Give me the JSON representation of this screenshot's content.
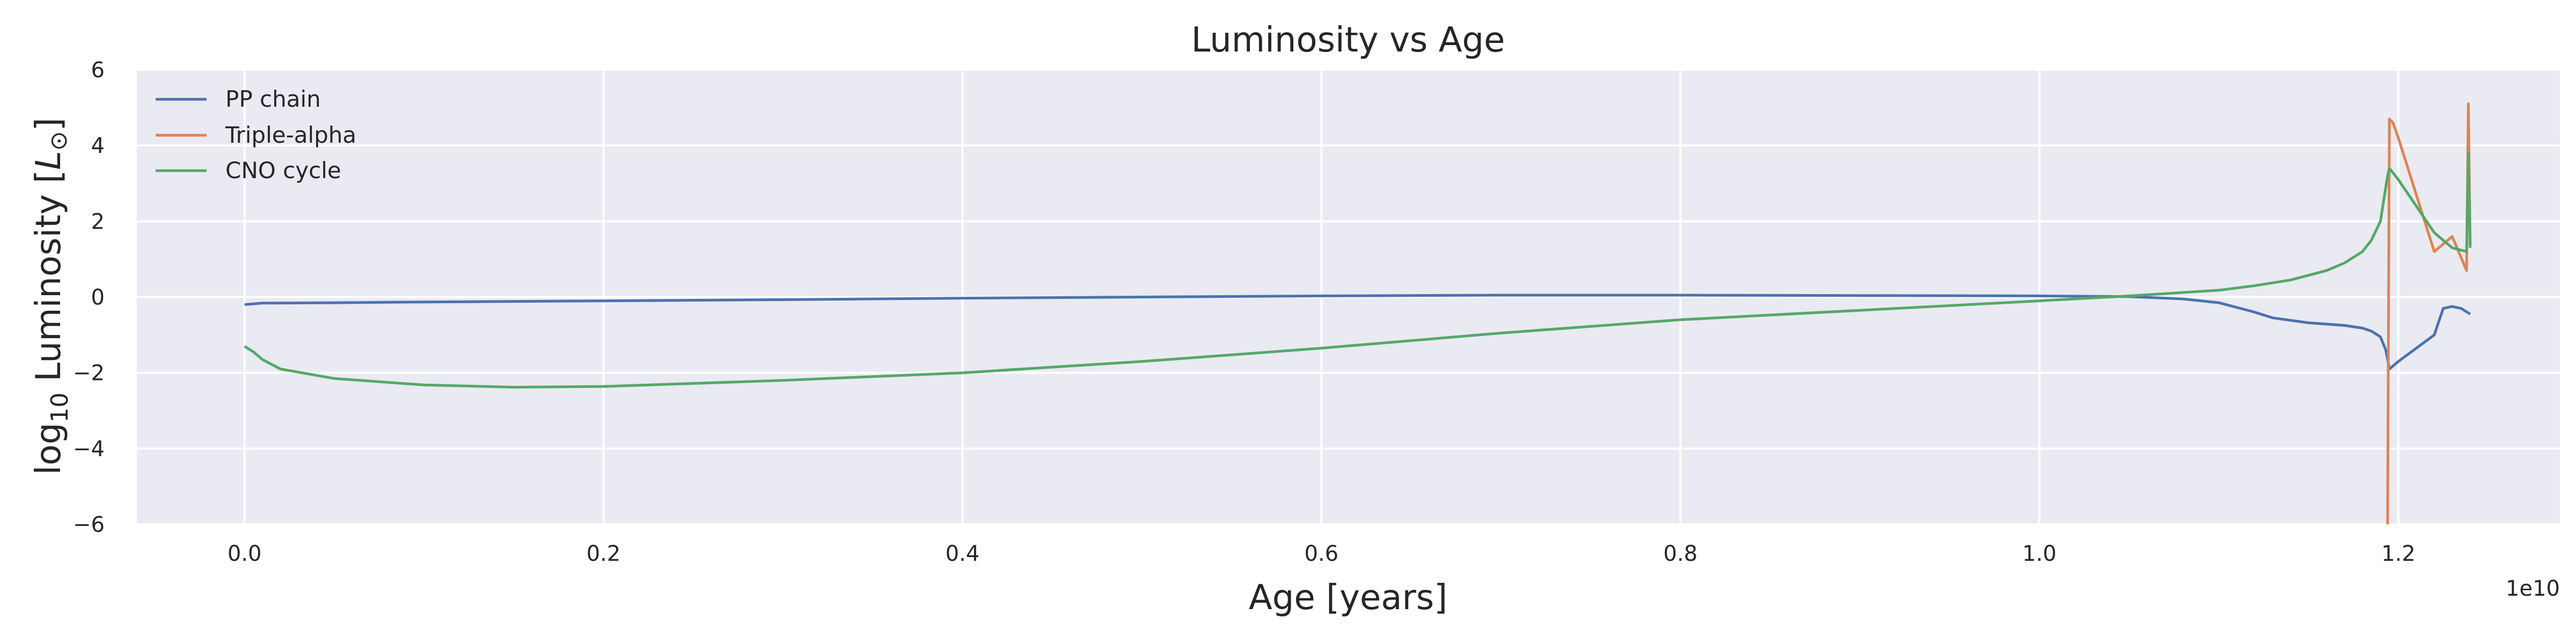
{
  "chart_data": {
    "type": "line",
    "title": "Luminosity vs Age",
    "xlabel": "Age [years]",
    "ylabel_prefix": "log",
    "ylabel_sub": "10",
    "ylabel_mid": " Luminosity [",
    "ylabel_symbol": "L",
    "ylabel_sun": "⊙",
    "ylabel_suffix": "]",
    "x_offset_label": "1e10",
    "x_scale": 10000000000,
    "xlim": [
      -0.06,
      1.29
    ],
    "ylim": [
      -6,
      6
    ],
    "xticks": [
      0.0,
      0.2,
      0.4,
      0.6,
      0.8,
      1.0,
      1.2
    ],
    "xtick_labels": [
      "0.0",
      "0.2",
      "0.4",
      "0.6",
      "0.8",
      "1.0",
      "1.2"
    ],
    "yticks": [
      6,
      4,
      2,
      0,
      -2,
      -4,
      -6
    ],
    "ytick_labels": [
      "6",
      "4",
      "2",
      "0",
      "−2",
      "−4",
      "−6"
    ],
    "grid": true,
    "legend_position": "top-left",
    "background_color": "#eaeaf2",
    "grid_color": "#ffffff",
    "series": [
      {
        "name": "PP chain",
        "color": "#4c72b0",
        "x": [
          0.0,
          0.01,
          0.05,
          0.1,
          0.2,
          0.3,
          0.4,
          0.5,
          0.6,
          0.7,
          0.8,
          0.9,
          1.0,
          1.05,
          1.08,
          1.1,
          1.12,
          1.13,
          1.15,
          1.17,
          1.18,
          1.185,
          1.19,
          1.193,
          1.195,
          1.2,
          1.22,
          1.225,
          1.23,
          1.235,
          1.24
        ],
        "y": [
          -0.2,
          -0.16,
          -0.15,
          -0.13,
          -0.1,
          -0.07,
          -0.03,
          0.0,
          0.03,
          0.05,
          0.05,
          0.04,
          0.03,
          0.01,
          -0.05,
          -0.15,
          -0.4,
          -0.55,
          -0.68,
          -0.75,
          -0.82,
          -0.9,
          -1.05,
          -1.4,
          -1.9,
          -1.7,
          -1.0,
          -0.3,
          -0.25,
          -0.3,
          -0.45
        ]
      },
      {
        "name": "Triple-alpha",
        "color": "#dd8452",
        "x": [
          1.194,
          1.195,
          1.197,
          1.2,
          1.22,
          1.23,
          1.238,
          1.239,
          1.24
        ],
        "y": [
          -6.0,
          4.7,
          4.6,
          4.2,
          1.2,
          1.6,
          0.7,
          5.1,
          1.4
        ]
      },
      {
        "name": "CNO cycle",
        "color": "#55a868",
        "x": [
          0.0,
          0.005,
          0.01,
          0.02,
          0.05,
          0.1,
          0.15,
          0.2,
          0.3,
          0.4,
          0.5,
          0.6,
          0.7,
          0.8,
          0.9,
          1.0,
          1.05,
          1.1,
          1.12,
          1.14,
          1.16,
          1.17,
          1.18,
          1.185,
          1.19,
          1.192,
          1.194,
          1.195,
          1.2,
          1.22,
          1.23,
          1.238,
          1.239,
          1.24
        ],
        "y": [
          -1.3,
          -1.45,
          -1.65,
          -1.9,
          -2.15,
          -2.32,
          -2.38,
          -2.36,
          -2.2,
          -2.0,
          -1.7,
          -1.35,
          -0.95,
          -0.6,
          -0.35,
          -0.1,
          0.03,
          0.18,
          0.3,
          0.45,
          0.7,
          0.9,
          1.2,
          1.5,
          2.0,
          2.6,
          3.2,
          3.4,
          3.1,
          1.7,
          1.3,
          1.2,
          3.8,
          1.3
        ]
      }
    ]
  }
}
